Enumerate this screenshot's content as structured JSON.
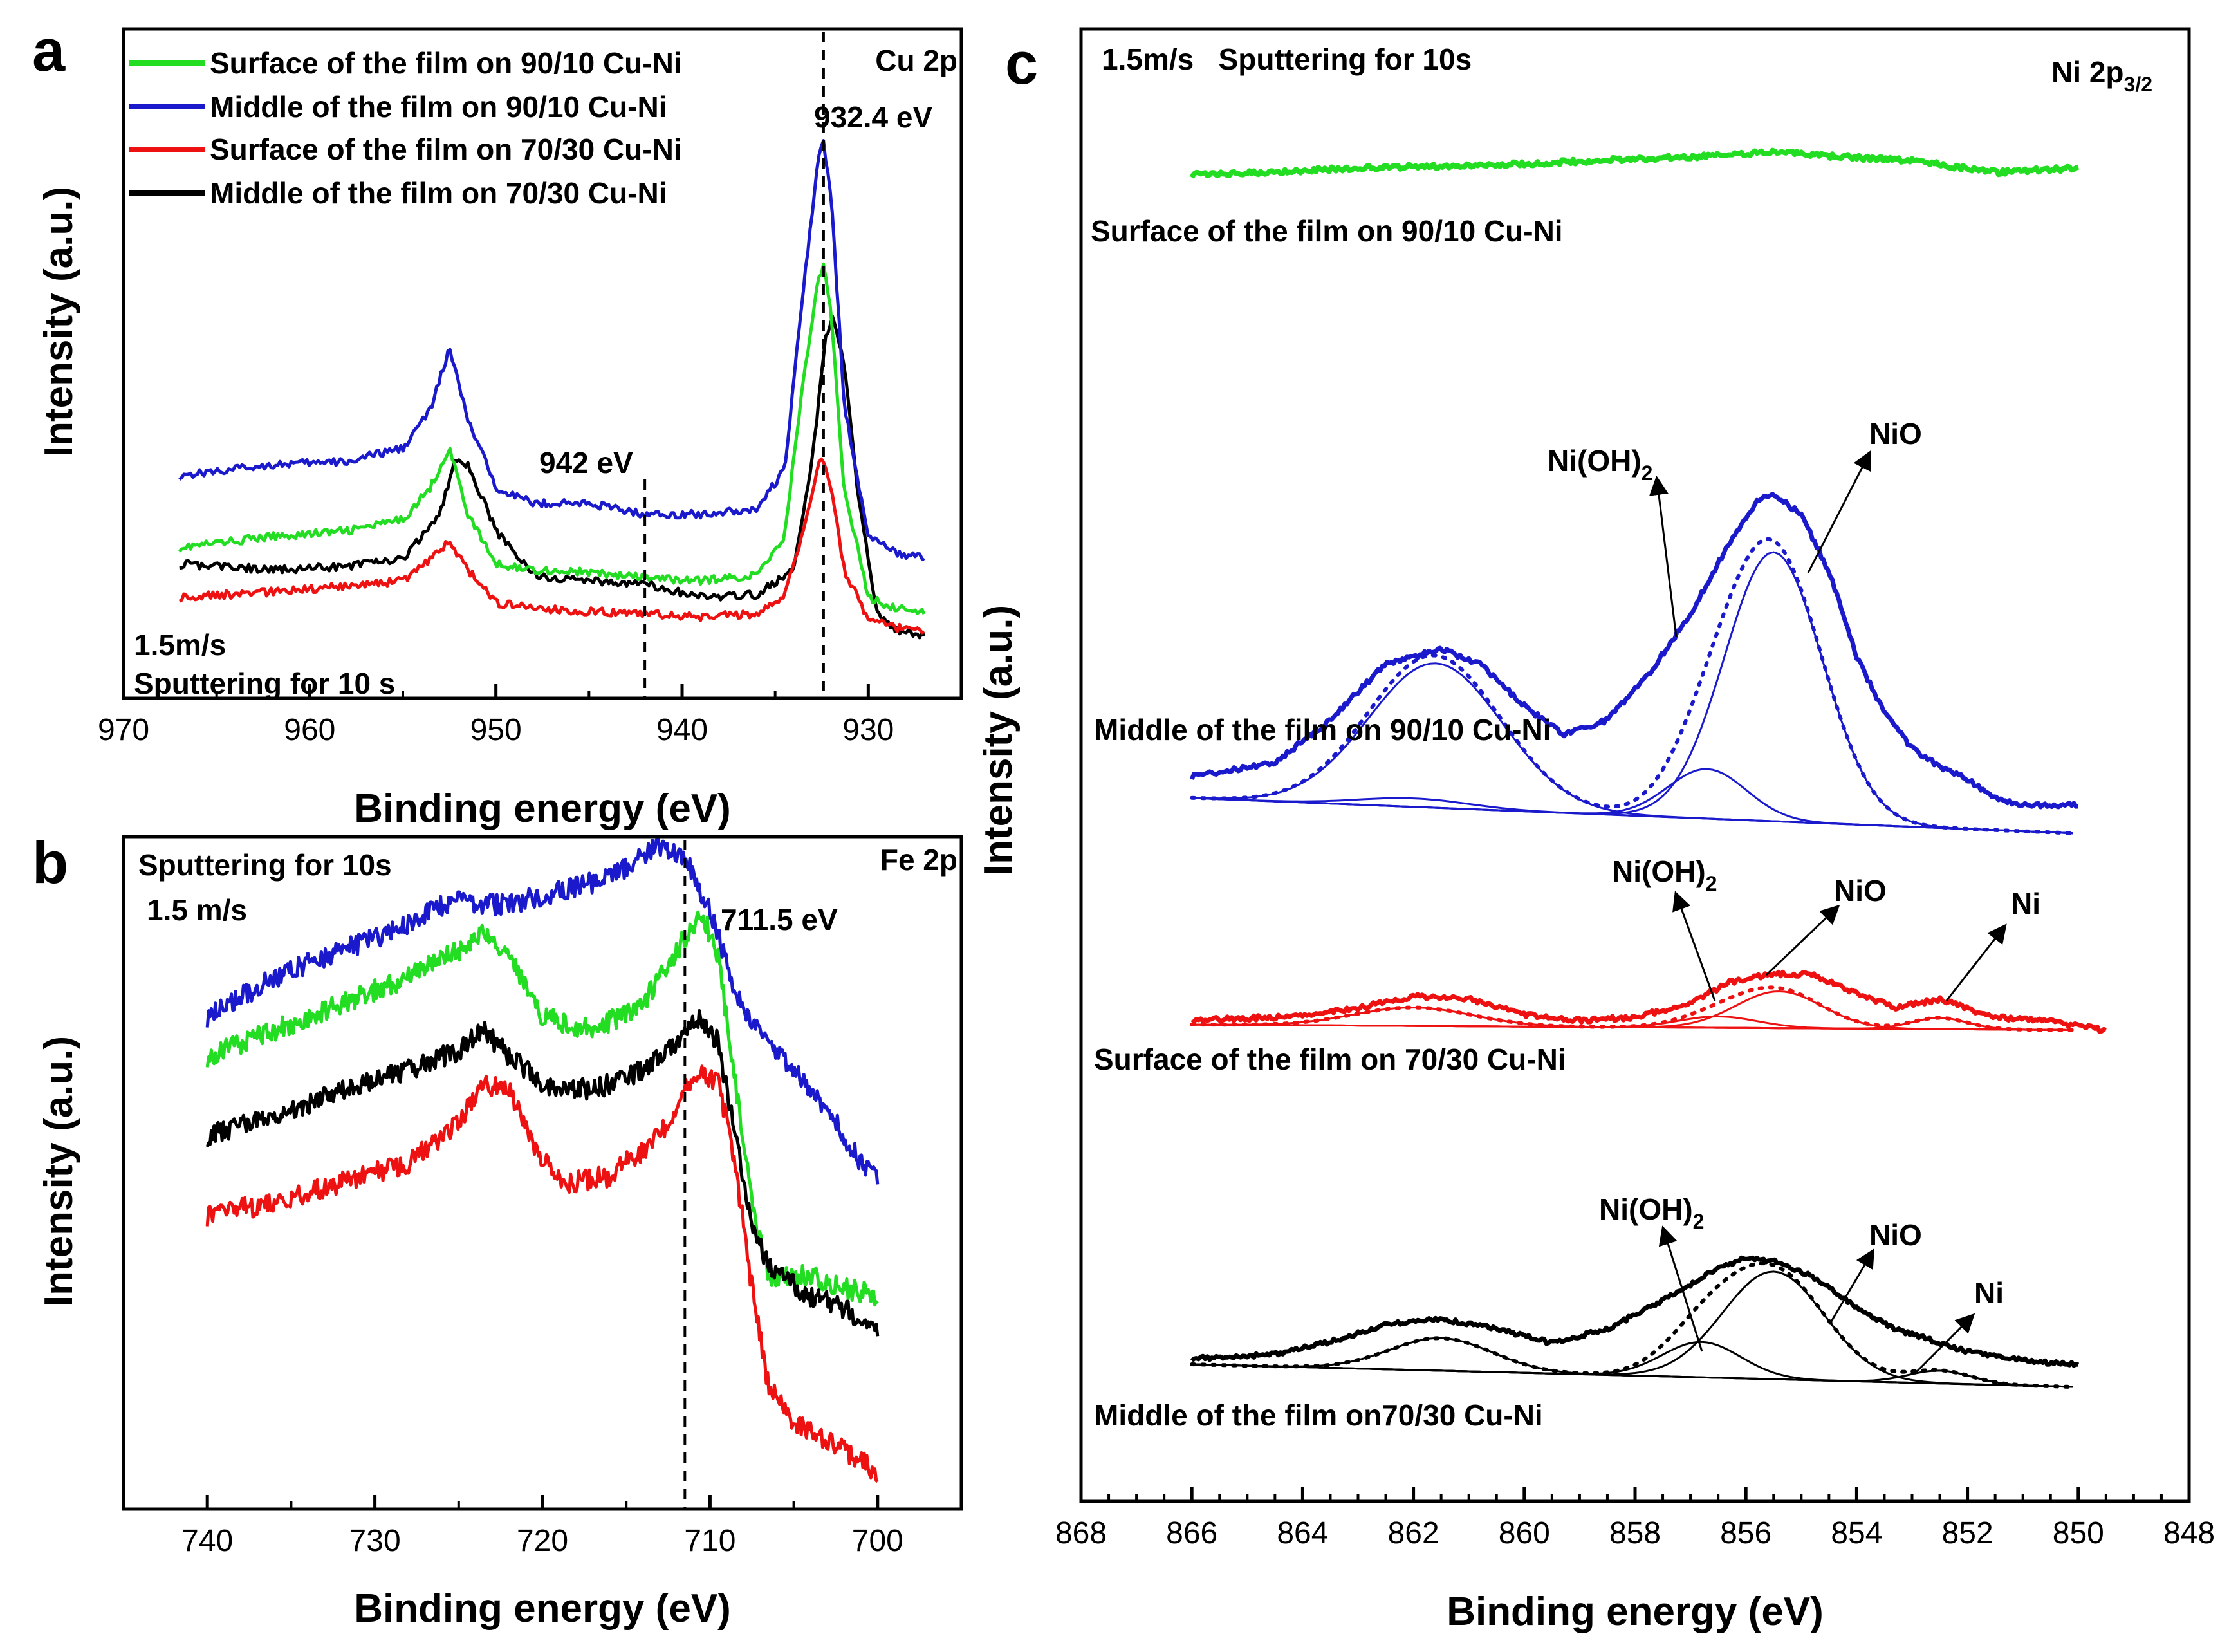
{
  "colors": {
    "green": "#22dd22",
    "blue": "#1a1acc",
    "red": "#ee1111",
    "black": "#000000",
    "axis": "#000000"
  },
  "chart_data": [
    {
      "panel": "a",
      "type": "line",
      "title": "Cu 2p",
      "xlabel": "Binding energy (eV)",
      "ylabel": "Intensity (a.u.)",
      "xlim": [
        970,
        925
      ],
      "ylim": [
        0,
        100
      ],
      "xticks": [
        970,
        960,
        950,
        940,
        930
      ],
      "legend_position": "top-left",
      "note_lines": [
        "1.5m/s",
        "Sputtering for 10 s"
      ],
      "reference_lines": [
        {
          "x": 942,
          "label": "942 eV"
        },
        {
          "x": 932.4,
          "label": "932.4 eV"
        }
      ],
      "series": [
        {
          "name": "Surface of the film on 90/10 Cu-Ni",
          "color": "#22dd22",
          "x": [
            967,
            962,
            958,
            955,
            953.5,
            952.5,
            951.5,
            950,
            948,
            945,
            942,
            939,
            936,
            934.5,
            933.5,
            932.7,
            932.4,
            932,
            931.3,
            930,
            928.5,
            927
          ],
          "y": [
            22,
            24,
            25,
            27,
            33,
            40,
            28,
            19,
            18,
            17.5,
            16.5,
            16,
            17,
            24,
            52,
            70,
            73,
            64,
            33,
            13,
            11,
            10.5
          ]
        },
        {
          "name": "Middle of the film on 90/10 Cu-Ni",
          "color": "#1a1acc",
          "x": [
            967,
            962,
            958,
            955,
            953.5,
            952.5,
            951.5,
            950,
            948,
            945,
            942,
            939,
            936,
            934.5,
            933.5,
            932.7,
            932.4,
            932,
            931.3,
            930,
            928.5,
            927
          ],
          "y": [
            35,
            37,
            37.5,
            40,
            47,
            58,
            45,
            33,
            30,
            30,
            28,
            28,
            29,
            36,
            68,
            92,
            95,
            86,
            48,
            24,
            21,
            20
          ]
        },
        {
          "name": "Surface of the film on 70/30 Cu-Ni",
          "color": "#ee1111",
          "x": [
            967,
            962,
            958,
            955,
            953.5,
            952.5,
            951.5,
            950,
            948,
            945,
            942,
            939,
            936,
            934.5,
            933.5,
            932.7,
            932.4,
            932,
            931.3,
            930,
            928.5,
            927
          ],
          "y": [
            13,
            14,
            15,
            16,
            20,
            23,
            18,
            12,
            11,
            10.5,
            10,
            9.5,
            10,
            13,
            25,
            37,
            38,
            33,
            18,
            9,
            7.5,
            7
          ]
        },
        {
          "name": "Middle of the film on 70/30 Cu-Ni",
          "color": "#000000",
          "x": [
            967,
            962,
            958,
            955,
            953,
            952.2,
            951.5,
            950,
            948,
            945,
            942,
            939,
            936,
            934,
            933,
            932.3,
            931.9,
            931.3,
            930.5,
            929.5,
            928.5,
            927
          ],
          "y": [
            19,
            18,
            18.5,
            20,
            28,
            38,
            37,
            25,
            17,
            16,
            15.5,
            13,
            13.5,
            18,
            38,
            60,
            64,
            55,
            30,
            10,
            7,
            6
          ]
        }
      ]
    },
    {
      "panel": "b",
      "type": "line",
      "title": "Fe 2p",
      "xlabel": "Binding energy (eV)",
      "ylabel": "Intensity (a.u.)",
      "xlim": [
        745,
        695
      ],
      "ylim": [
        0,
        100
      ],
      "xticks": [
        740,
        730,
        720,
        710,
        700
      ],
      "note_lines": [
        "Sputtering for 10s",
        "1.5 m/s"
      ],
      "reference_lines": [
        {
          "x": 711.5,
          "label": "711.5 eV"
        }
      ],
      "series": [
        {
          "name": "Blue",
          "color": "#1a1acc",
          "x": [
            740,
            736,
            732,
            728,
            725,
            723.5,
            722,
            719,
            716,
            713,
            711.5,
            710,
            708.5,
            707,
            705,
            703,
            701,
            700
          ],
          "y": [
            66,
            72,
            76,
            80,
            84,
            83,
            83,
            85,
            87,
            92,
            90,
            82,
            70,
            63,
            58,
            52,
            44,
            42
          ]
        },
        {
          "name": "Green",
          "color": "#22dd22",
          "x": [
            740,
            736,
            732,
            728,
            725,
            723.5,
            722,
            720,
            717,
            714,
            712,
            710.5,
            709.5,
            708.5,
            707.5,
            706.5,
            704,
            702,
            700
          ],
          "y": [
            60,
            64,
            68,
            72,
            76,
            79,
            75,
            66,
            64,
            68,
            76,
            82,
            75,
            56,
            38,
            27,
            27,
            25,
            24
          ]
        },
        {
          "name": "Black",
          "color": "#000000",
          "x": [
            740,
            736,
            732,
            728,
            725,
            723.5,
            722,
            720,
            717,
            714,
            712,
            710.5,
            709.5,
            708.5,
            707.5,
            706.5,
            704,
            702,
            700
          ],
          "y": [
            48,
            51,
            55,
            58,
            61,
            64,
            60,
            56,
            55,
            58,
            62,
            66,
            62,
            48,
            35,
            28,
            24,
            22,
            19
          ]
        },
        {
          "name": "Red",
          "color": "#ee1111",
          "x": [
            740,
            736,
            732,
            728,
            725,
            723.5,
            722,
            720.5,
            718.5,
            716,
            713,
            711.5,
            710.5,
            709.5,
            708.5,
            707.5,
            706.5,
            705,
            703,
            701,
            700
          ],
          "y": [
            36,
            38,
            41,
            44,
            50,
            56,
            55,
            46,
            41,
            42,
            48,
            55,
            57,
            56,
            44,
            25,
            10,
            5,
            2,
            -1,
            -3
          ]
        }
      ]
    },
    {
      "panel": "c",
      "type": "line",
      "title": "Ni 2p",
      "title_subscript": "3/2",
      "xlabel": "Binding energy (eV)",
      "ylabel": "Intensity (a.u.)",
      "xlim": [
        868,
        848
      ],
      "ylim": [
        0,
        100
      ],
      "xticks": [
        868,
        866,
        864,
        862,
        860,
        858,
        856,
        854,
        852,
        850,
        848
      ],
      "note": "1.5m/s   Sputtering for 10s",
      "offsets": {
        "surface_9010": 89,
        "middle_9010": 46,
        "surface_7030": 29,
        "middle_7030": 5
      },
      "series_labels": [
        "Surface of the film on 90/10 Cu-Ni",
        "Middle of the film on 90/10 Cu-Ni",
        "Surface of the film on 70/30 Cu-Ni",
        "Middle of the film on70/30 Cu-Ni"
      ],
      "component_labels": {
        "ni_oh2": "Ni(OH)",
        "ni_oh2_subscript": "2",
        "nio": "NiO",
        "ni": "Ni"
      },
      "series": [
        {
          "name": "Surface of the film on 90/10 Cu-Ni",
          "color": "#22dd22",
          "x": [
            866,
            863,
            860,
            857,
            855.5,
            853,
            851.5,
            850
          ],
          "y": [
            0,
            0.5,
            0.8,
            1.3,
            1.6,
            1.0,
            0.2,
            0.5
          ]
        },
        {
          "name": "Middle of the film on 90/10 Cu-Ni",
          "color": "#1a1acc",
          "x": [
            866,
            864.5,
            863.5,
            862.5,
            861.5,
            860.8,
            860,
            859.3,
            858.5,
            857.8,
            857,
            856.3,
            855.8,
            855.5,
            855,
            854.5,
            854,
            853.5,
            853,
            852.5,
            852,
            851.5,
            851,
            850
          ],
          "y": [
            0.5,
            1.5,
            4.5,
            8.5,
            9.5,
            8.5,
            5.5,
            3.5,
            4.5,
            7.5,
            12,
            17,
            20,
            20.5,
            19,
            15,
            9,
            5,
            2.5,
            1.2,
            0.3,
            -1,
            -1.5,
            -1.5
          ]
        },
        {
          "name": "Surface of the film on 70/30 Cu-Ni",
          "color": "#ee1111",
          "x": [
            866,
            864,
            863,
            862,
            861,
            860,
            859,
            858,
            857,
            856.3,
            855.5,
            854.8,
            854,
            853.3,
            852.5,
            852,
            851.5,
            850.5,
            849.5
          ],
          "y": [
            0.3,
            0.6,
            1.2,
            2.0,
            1.8,
            0.7,
            0.3,
            0.5,
            1.5,
            3.0,
            3.6,
            3.5,
            2.2,
            1.2,
            1.8,
            1.1,
            0.5,
            0.2,
            -0.4
          ]
        },
        {
          "name": "Middle of the film on70/30 Cu-Ni",
          "color": "#000000",
          "x": [
            866,
            864.5,
            863.5,
            862.5,
            861.5,
            860.5,
            859.5,
            858.5,
            857.5,
            856.5,
            856,
            855.5,
            854.8,
            854,
            853.3,
            852.5,
            852,
            851.3,
            850.5,
            850
          ],
          "y": [
            0.4,
            0.7,
            1.6,
            2.8,
            3.2,
            2.5,
            1.5,
            2.5,
            4.5,
            6.8,
            7.5,
            7.3,
            6.2,
            4.0,
            2.5,
            1.5,
            0.9,
            0.4,
            0.1,
            0.0
          ]
        }
      ]
    }
  ]
}
